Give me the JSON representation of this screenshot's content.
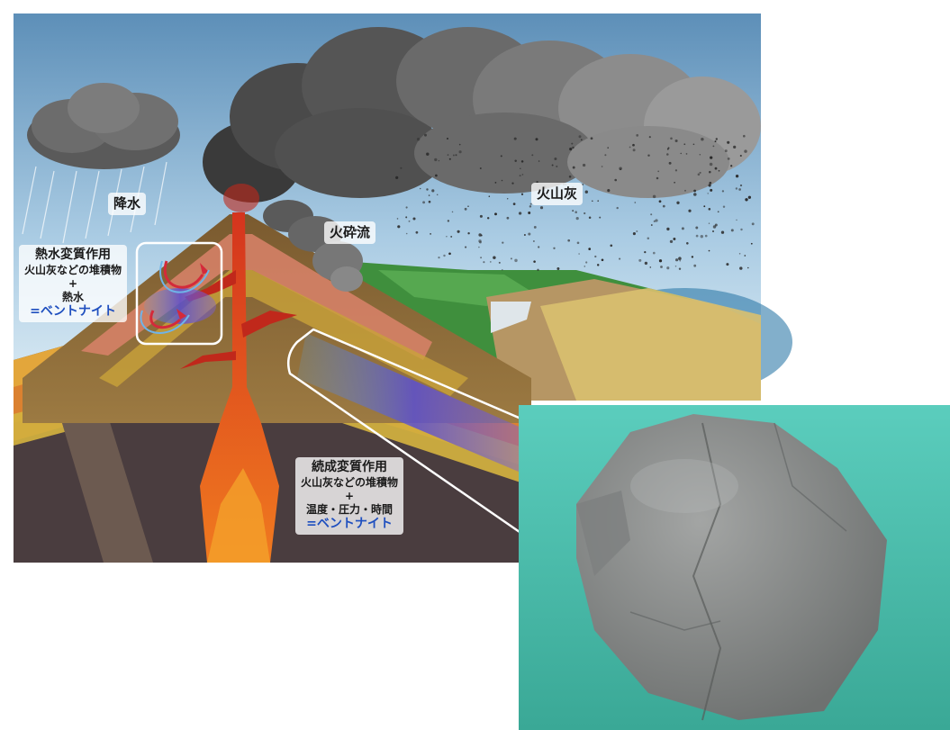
{
  "labels": {
    "rain": "降水",
    "pyroclastic_flow": "火砕流",
    "volcanic_ash": "火山灰",
    "hydrothermal": {
      "title": "熱水変質作用",
      "line1": "火山灰などの堆積物",
      "plus": "+",
      "line2": "熱水",
      "result": "=ベントナイト"
    },
    "diagenesis": {
      "title": "続成変質作用",
      "line1": "火山灰などの堆積物",
      "plus": "+",
      "line2": "温度・圧力・時間",
      "result": "=ベントナイト"
    }
  },
  "colors": {
    "accent": "#1f4fbf",
    "magma": "#c0281b",
    "photo_bg": "#3fc1b0",
    "rock": "#8a8d8c"
  },
  "icons": [
    "rain-cloud-icon",
    "eruption-cloud-icon",
    "pyroclastic-cloud-icon",
    "bentonite-rock-icon"
  ]
}
